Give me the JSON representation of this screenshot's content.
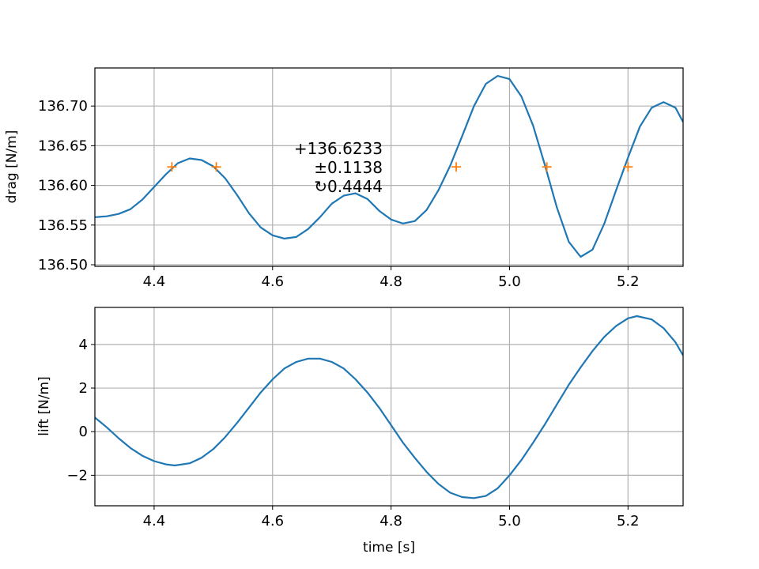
{
  "chart_data": [
    {
      "type": "line",
      "xlabel": "",
      "ylabel": "drag [N/m]",
      "xlim": [
        4.3,
        5.293
      ],
      "ylim": [
        136.498,
        136.748
      ],
      "grid": true,
      "xticks": [
        4.4,
        4.6,
        4.8,
        5.0,
        5.2
      ],
      "xtick_labels": [
        "4.4",
        "4.6",
        "4.8",
        "5.0",
        "5.2"
      ],
      "yticks": [
        136.5,
        136.55,
        136.6,
        136.65,
        136.7
      ],
      "ytick_labels": [
        "136.50",
        "136.55",
        "136.60",
        "136.65",
        "136.70"
      ],
      "line_color": "#1f77b4",
      "marker_color": "#ff7f0e",
      "series": [
        {
          "x": [
            4.3,
            4.32,
            4.34,
            4.36,
            4.38,
            4.4,
            4.42,
            4.44,
            4.46,
            4.48,
            4.5,
            4.52,
            4.54,
            4.56,
            4.58,
            4.6,
            4.62,
            4.64,
            4.66,
            4.68,
            4.7,
            4.72,
            4.74,
            4.76,
            4.78,
            4.8,
            4.82,
            4.84,
            4.86,
            4.88,
            4.9,
            4.92,
            4.94,
            4.96,
            4.98,
            5.0,
            5.02,
            5.04,
            5.06,
            5.08,
            5.1,
            5.12,
            5.14,
            5.16,
            5.18,
            5.2,
            5.22,
            5.24,
            5.26,
            5.28,
            5.293
          ],
          "values": [
            136.56,
            136.561,
            136.564,
            136.57,
            136.582,
            136.598,
            136.614,
            136.628,
            136.634,
            136.632,
            136.624,
            136.609,
            136.588,
            136.565,
            136.547,
            136.537,
            136.533,
            136.535,
            136.545,
            136.56,
            136.577,
            136.587,
            136.59,
            136.583,
            136.568,
            136.557,
            136.552,
            136.555,
            136.569,
            136.594,
            136.625,
            136.662,
            136.7,
            136.728,
            136.738,
            136.734,
            136.712,
            136.675,
            136.625,
            136.572,
            136.529,
            136.51,
            136.519,
            136.552,
            136.594,
            136.635,
            136.674,
            136.698,
            136.705,
            136.698,
            136.68
          ]
        }
      ],
      "markers": {
        "x": [
          4.43,
          4.505,
          4.91,
          5.063,
          5.2
        ],
        "values": [
          136.6233,
          136.6233,
          136.6233,
          136.6233,
          136.6233
        ]
      },
      "annotation": [
        "+136.6233",
        "±0.1138",
        "↻0.4444"
      ]
    },
    {
      "type": "line",
      "xlabel": "time [s]",
      "ylabel": "lift [N/m]",
      "xlim": [
        4.3,
        5.293
      ],
      "ylim": [
        -3.4,
        5.7
      ],
      "grid": true,
      "xticks": [
        4.4,
        4.6,
        4.8,
        5.0,
        5.2
      ],
      "xtick_labels": [
        "4.4",
        "4.6",
        "4.8",
        "5.0",
        "5.2"
      ],
      "yticks": [
        -2,
        0,
        2,
        4
      ],
      "ytick_labels": [
        "−2",
        "0",
        "2",
        "4"
      ],
      "line_color": "#1f77b4",
      "series": [
        {
          "x": [
            4.3,
            4.32,
            4.34,
            4.36,
            4.38,
            4.4,
            4.42,
            4.435,
            4.46,
            4.48,
            4.5,
            4.52,
            4.54,
            4.56,
            4.58,
            4.6,
            4.62,
            4.64,
            4.66,
            4.68,
            4.7,
            4.72,
            4.74,
            4.76,
            4.78,
            4.8,
            4.82,
            4.84,
            4.86,
            4.88,
            4.9,
            4.92,
            4.94,
            4.96,
            4.98,
            5.0,
            5.02,
            5.04,
            5.06,
            5.08,
            5.1,
            5.12,
            5.14,
            5.16,
            5.18,
            5.2,
            5.215,
            5.24,
            5.26,
            5.28,
            5.293
          ],
          "values": [
            0.65,
            0.2,
            -0.3,
            -0.75,
            -1.1,
            -1.35,
            -1.5,
            -1.55,
            -1.45,
            -1.2,
            -0.8,
            -0.25,
            0.4,
            1.1,
            1.8,
            2.4,
            2.9,
            3.2,
            3.35,
            3.35,
            3.2,
            2.9,
            2.4,
            1.8,
            1.1,
            0.3,
            -0.5,
            -1.2,
            -1.85,
            -2.4,
            -2.8,
            -3.0,
            -3.05,
            -2.95,
            -2.6,
            -2.0,
            -1.3,
            -0.5,
            0.35,
            1.25,
            2.15,
            2.95,
            3.7,
            4.35,
            4.85,
            5.2,
            5.3,
            5.15,
            4.75,
            4.1,
            3.5
          ]
        }
      ]
    }
  ]
}
